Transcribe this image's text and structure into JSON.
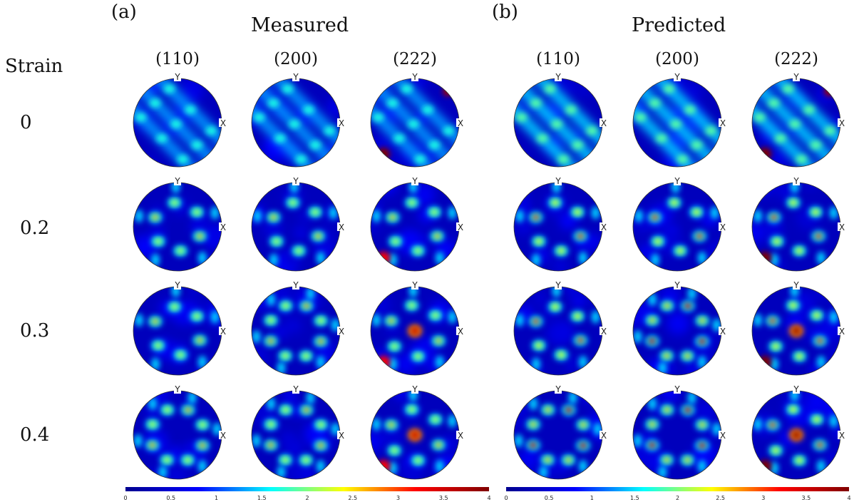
{
  "panels": [
    {
      "letter": "(a)",
      "title": "Measured",
      "planes": [
        "(110)",
        "(200)",
        "(222)"
      ]
    },
    {
      "letter": "(b)",
      "title": "Predicted",
      "planes": [
        "(110)",
        "(200)",
        "(222)"
      ]
    }
  ],
  "strain_header": "Strain",
  "strains": [
    "0",
    "0.2",
    "0.3",
    "0.4"
  ],
  "axis_labels": {
    "y": "Y",
    "x": "X"
  },
  "colorbar": {
    "ticks": [
      "0",
      "0.5",
      "1",
      "1.5",
      "2",
      "2.5",
      "3",
      "3.5",
      "4"
    ],
    "range": [
      0,
      4
    ],
    "colormap": [
      "#00008f",
      "#0000ff",
      "#00ffff",
      "#ffff00",
      "#ff0000",
      "#800000"
    ]
  }
}
